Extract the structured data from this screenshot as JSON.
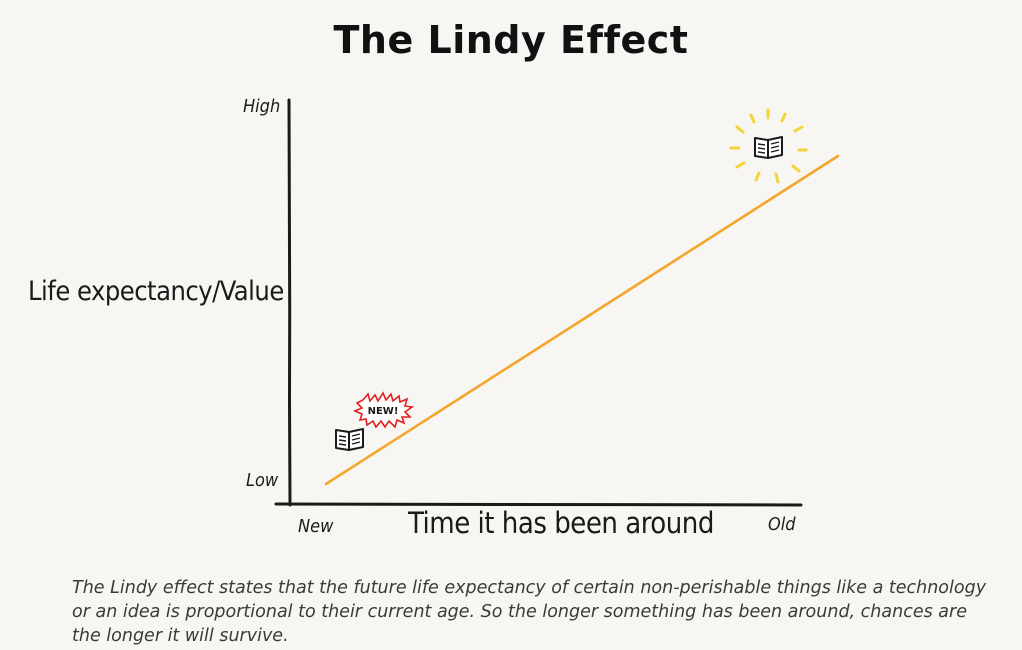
{
  "title": "The Lindy Effect",
  "y_axis": {
    "label": "Life expectancy/Value",
    "high": "High",
    "low": "Low"
  },
  "x_axis": {
    "label": "Time it has been around",
    "start": "New",
    "end": "Old"
  },
  "badge": {
    "text": "NEW!"
  },
  "caption": "The Lindy effect states that the future life expectancy of certain non-perishable things like a technology or an idea is proportional to their current age. So the longer something has been around, chances are the longer it will survive.",
  "colors": {
    "trend_line": "#f4a52c",
    "new_badge": "#e02020",
    "glow": "#f3d43a",
    "ink": "#1a1a1a"
  },
  "icons": [
    "open-book-icon",
    "open-book-icon"
  ]
}
